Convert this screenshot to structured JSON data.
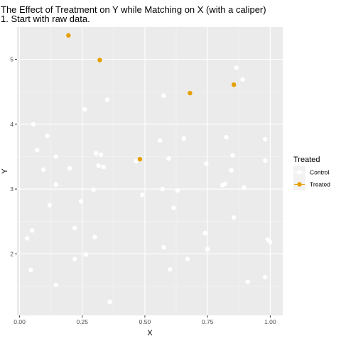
{
  "chart_data": {
    "type": "scatter",
    "title": "The Effect of Treatment on Y while Matching on X (with a caliper)",
    "subtitle": "1. Start with raw data.",
    "xlabel": "X",
    "ylabel": "Y",
    "xlim": [
      -0.01,
      1.05
    ],
    "ylim": [
      1.05,
      5.5
    ],
    "xticks": [
      0.0,
      0.25,
      0.5,
      0.75,
      1.0
    ],
    "xtick_labels": [
      "0.00",
      "0.25",
      "0.50",
      "0.75",
      "1.00"
    ],
    "yticks": [
      2,
      3,
      4,
      5
    ],
    "ytick_labels": [
      "2",
      "3",
      "4",
      "5"
    ],
    "grid": true,
    "legend": {
      "title": "Treated",
      "placement": "right"
    },
    "background": "#ebebeb",
    "series": [
      {
        "name": "Control",
        "color": "#ffffff",
        "points": [
          [
            0.03,
            2.24
          ],
          [
            0.05,
            2.36
          ],
          [
            0.045,
            1.75
          ],
          [
            0.055,
            4.0
          ],
          [
            0.07,
            3.6
          ],
          [
            0.095,
            3.3
          ],
          [
            0.11,
            3.82
          ],
          [
            0.12,
            2.75
          ],
          [
            0.145,
            3.5
          ],
          [
            0.145,
            3.07
          ],
          [
            0.145,
            1.52
          ],
          [
            0.2,
            3.32
          ],
          [
            0.22,
            2.4
          ],
          [
            0.22,
            1.92
          ],
          [
            0.245,
            2.81
          ],
          [
            0.26,
            4.23
          ],
          [
            0.265,
            1.99
          ],
          [
            0.295,
            2.99
          ],
          [
            0.3,
            2.26
          ],
          [
            0.305,
            3.55
          ],
          [
            0.315,
            3.36
          ],
          [
            0.325,
            3.53
          ],
          [
            0.335,
            3.34
          ],
          [
            0.35,
            4.38
          ],
          [
            0.36,
            1.26
          ],
          [
            0.465,
            3.43
          ],
          [
            0.49,
            2.91
          ],
          [
            0.56,
            3.75
          ],
          [
            0.57,
            3.0
          ],
          [
            0.575,
            4.44
          ],
          [
            0.575,
            2.1
          ],
          [
            0.595,
            3.47
          ],
          [
            0.6,
            1.76
          ],
          [
            0.615,
            2.71
          ],
          [
            0.63,
            2.98
          ],
          [
            0.655,
            3.78
          ],
          [
            0.67,
            1.92
          ],
          [
            0.74,
            2.32
          ],
          [
            0.745,
            3.39
          ],
          [
            0.75,
            2.07
          ],
          [
            0.81,
            3.06
          ],
          [
            0.82,
            3.08
          ],
          [
            0.825,
            3.8
          ],
          [
            0.845,
            3.29
          ],
          [
            0.85,
            3.52
          ],
          [
            0.855,
            2.56
          ],
          [
            0.865,
            4.87
          ],
          [
            0.89,
            4.69
          ],
          [
            0.895,
            3.02
          ],
          [
            0.91,
            1.57
          ],
          [
            0.98,
            3.77
          ],
          [
            0.98,
            3.44
          ],
          [
            0.98,
            1.64
          ],
          [
            0.99,
            2.22
          ],
          [
            1.0,
            2.18
          ]
        ]
      },
      {
        "name": "Treated",
        "color": "#e69f00",
        "points": [
          [
            0.195,
            5.37
          ],
          [
            0.32,
            4.99
          ],
          [
            0.48,
            3.46
          ],
          [
            0.68,
            4.48
          ],
          [
            0.855,
            4.61
          ]
        ]
      }
    ]
  }
}
